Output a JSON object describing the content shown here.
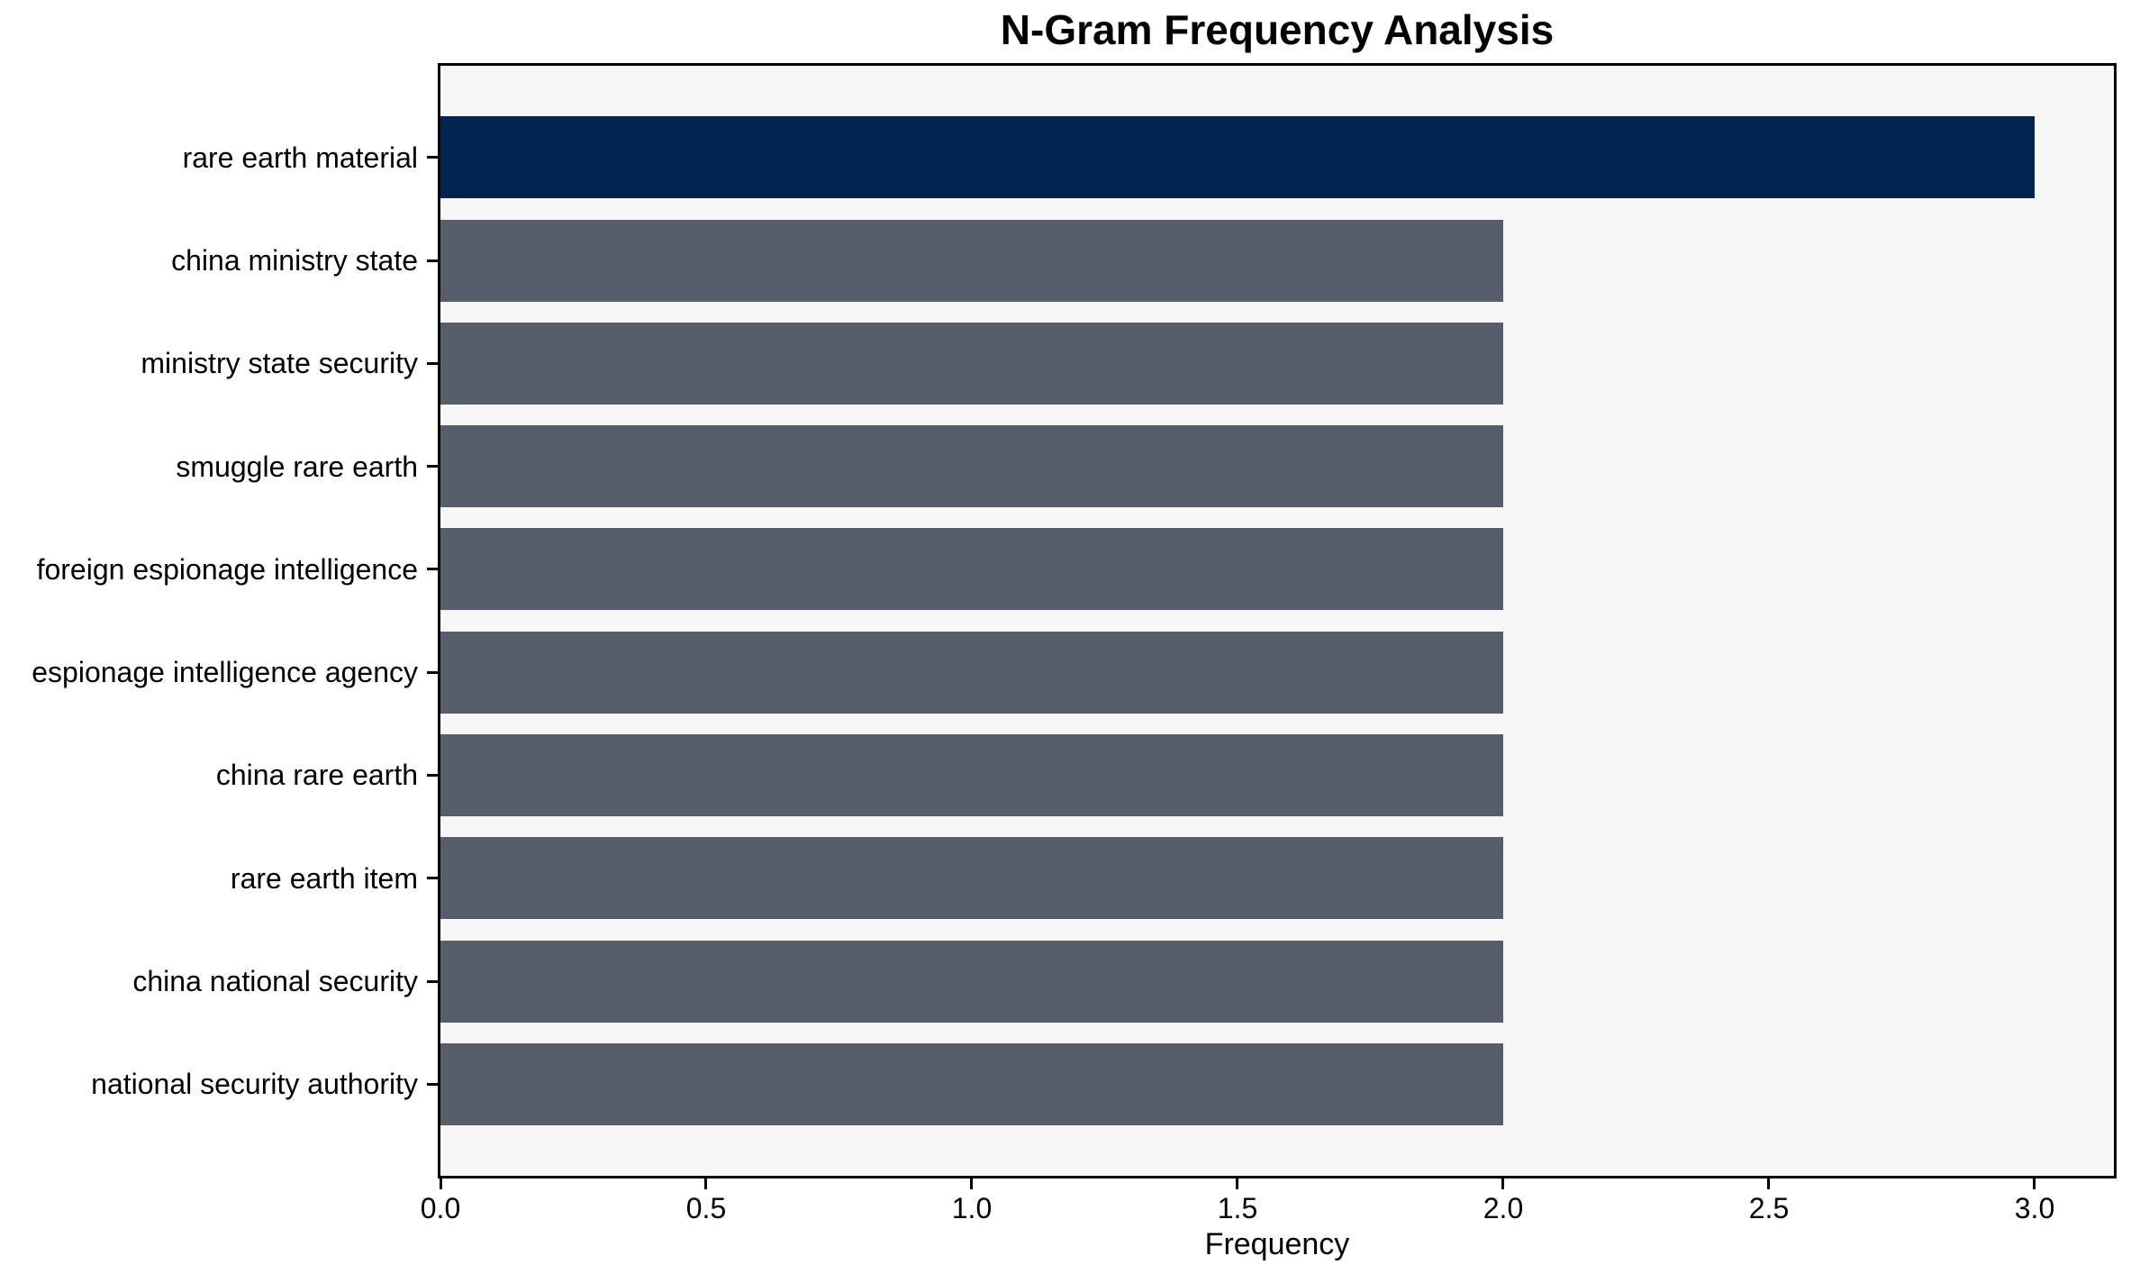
{
  "chart_data": {
    "type": "bar",
    "orientation": "horizontal",
    "title": "N-Gram Frequency Analysis",
    "xlabel": "Frequency",
    "ylabel": "",
    "categories": [
      "rare earth material",
      "china ministry state",
      "ministry state security",
      "smuggle rare earth",
      "foreign espionage intelligence",
      "espionage intelligence agency",
      "china rare earth",
      "rare earth item",
      "china national security",
      "national security authority"
    ],
    "values": [
      3,
      2,
      2,
      2,
      2,
      2,
      2,
      2,
      2,
      2
    ],
    "bar_colors": [
      "#012450",
      "#565D6B",
      "#565D6B",
      "#565D6B",
      "#565D6B",
      "#565D6B",
      "#565D6B",
      "#565D6B",
      "#565D6B",
      "#565D6B"
    ],
    "x_ticks": [
      "0.0",
      "0.5",
      "1.0",
      "1.5",
      "2.0",
      "2.5",
      "3.0"
    ],
    "xlim": [
      0,
      3.15
    ],
    "bar_width_fraction": 0.8,
    "grid": false,
    "legend": null,
    "colors": {
      "highlight_bar": "#012450",
      "default_bar": "#565D6B",
      "plot_background": "#F7F7F8",
      "figure_background": "#FFFFFF",
      "spine": "#000000",
      "text": "#000000"
    }
  }
}
